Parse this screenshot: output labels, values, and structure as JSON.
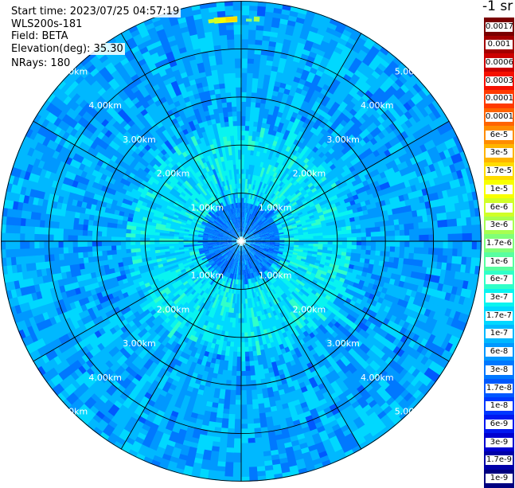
{
  "header": {
    "start_time": "Start time: 2023/07/25 04:57:19",
    "instrument": "WLS200s-181",
    "field": "Field: BETA",
    "elevation": "Elevation(deg): 35.30",
    "nrays": "NRays: 180"
  },
  "colorbar": {
    "unit": "-1 sr",
    "labels": [
      "0.0017",
      "0.001",
      "0.0006",
      "0.0003",
      "0.00017",
      "0.0001",
      "6e-5",
      "3e-5",
      "1.7e-5",
      "1e-5",
      "6e-6",
      "3e-6",
      "1.7e-6",
      "1e-6",
      "6e-7",
      "3e-7",
      "1.7e-7",
      "1e-7",
      "6e-8",
      "3e-8",
      "1.7e-8",
      "1e-8",
      "6e-9",
      "3e-9",
      "1.7e-9",
      "1e-9"
    ],
    "colors": [
      "#7a0000",
      "#a30000",
      "#cc0000",
      "#f51000",
      "#ff3a00",
      "#ff6400",
      "#ff8c00",
      "#ffb400",
      "#ffdc00",
      "#f8ff00",
      "#d0ff28",
      "#a8ff50",
      "#80ff78",
      "#58ffa0",
      "#30ffc8",
      "#08f4f0",
      "#00d8ff",
      "#00b8ff",
      "#0098ff",
      "#0078ff",
      "#0058ff",
      "#0038ff",
      "#0018f0",
      "#0000d0",
      "#0000a8",
      "#000080"
    ]
  },
  "chart_data": {
    "type": "heatmap",
    "title": "",
    "projection": "polar PPI scan",
    "range_unit": "km",
    "range_max": 5.0,
    "range_rings_km": [
      1,
      2,
      3,
      4,
      5
    ],
    "ring_labels": [
      "1.00km",
      "2.00km",
      "3.00km",
      "4.00km",
      "5.00km"
    ],
    "spokes_deg": [
      0,
      30,
      60,
      90,
      120,
      150,
      180,
      210,
      240,
      270,
      300,
      330
    ],
    "nrays": 180,
    "background_value": "≈3e-7 (cyan-blue)",
    "features": [
      {
        "desc": "enhanced backscatter annulus",
        "range_km": [
          1.0,
          2.3
        ],
        "value": "≈1.7e-6 to 6e-7"
      },
      {
        "desc": "low near-range core",
        "range_km": [
          0.0,
          0.8
        ],
        "value": "≈1.7e-8"
      },
      {
        "desc": "high-value patch north",
        "range_km": [
          4.5,
          4.7
        ],
        "azimuth_deg": [
          355,
          15
        ],
        "value": "≈1e-5"
      }
    ]
  }
}
